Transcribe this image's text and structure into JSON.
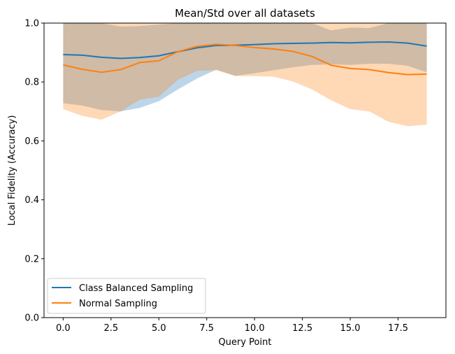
{
  "chart_data": {
    "type": "line",
    "title": "Mean/Std over all datasets",
    "xlabel": "Query Point",
    "ylabel": "Local Fidelity (Accuracy)",
    "xlim": [
      -1,
      20
    ],
    "ylim": [
      0.0,
      1.0
    ],
    "xticks": [
      0.0,
      2.5,
      5.0,
      7.5,
      10.0,
      12.5,
      15.0,
      17.5
    ],
    "xtick_labels": [
      "0.0",
      "2.5",
      "5.0",
      "7.5",
      "10.0",
      "12.5",
      "15.0",
      "17.5"
    ],
    "yticks": [
      0.0,
      0.2,
      0.4,
      0.6,
      0.8,
      1.0
    ],
    "ytick_labels": [
      "0.0",
      "0.2",
      "0.4",
      "0.6",
      "0.8",
      "1.0"
    ],
    "grid": false,
    "legend_position": "lower-left",
    "x": [
      0,
      1,
      2,
      3,
      4,
      5,
      6,
      7,
      8,
      9,
      10,
      11,
      12,
      13,
      14,
      15,
      16,
      17,
      18,
      19
    ],
    "series": [
      {
        "name": "Class Balanced Sampling",
        "color": "#1f77b4",
        "mean": [
          0.893,
          0.891,
          0.884,
          0.88,
          0.883,
          0.889,
          0.903,
          0.916,
          0.924,
          0.925,
          0.927,
          0.93,
          0.931,
          0.932,
          0.934,
          0.933,
          0.935,
          0.936,
          0.932,
          0.922
        ],
        "lower": [
          0.728,
          0.72,
          0.705,
          0.7,
          0.712,
          0.735,
          0.775,
          0.812,
          0.842,
          0.821,
          0.83,
          0.84,
          0.85,
          0.858,
          0.86,
          0.858,
          0.862,
          0.862,
          0.855,
          0.833
        ],
        "upper": [
          1.0,
          1.0,
          1.0,
          0.988,
          0.99,
          0.995,
          1.0,
          1.0,
          1.0,
          1.0,
          1.0,
          1.0,
          1.0,
          1.0,
          0.975,
          0.985,
          0.983,
          1.0,
          1.0,
          1.0
        ]
      },
      {
        "name": "Normal Sampling",
        "color": "#ff7f0e",
        "mean": [
          0.858,
          0.843,
          0.833,
          0.842,
          0.866,
          0.872,
          0.903,
          0.921,
          0.928,
          0.924,
          0.917,
          0.912,
          0.904,
          0.887,
          0.857,
          0.846,
          0.842,
          0.832,
          0.825,
          0.827
        ],
        "lower": [
          0.708,
          0.685,
          0.672,
          0.7,
          0.74,
          0.75,
          0.808,
          0.838,
          0.84,
          0.82,
          0.82,
          0.818,
          0.802,
          0.775,
          0.738,
          0.708,
          0.7,
          0.665,
          0.65,
          0.655
        ],
        "upper": [
          1.0,
          1.0,
          1.0,
          1.0,
          1.0,
          1.0,
          1.0,
          1.0,
          1.0,
          1.0,
          1.0,
          1.0,
          1.0,
          1.0,
          1.0,
          1.0,
          1.0,
          1.0,
          1.0,
          1.0
        ]
      }
    ]
  }
}
